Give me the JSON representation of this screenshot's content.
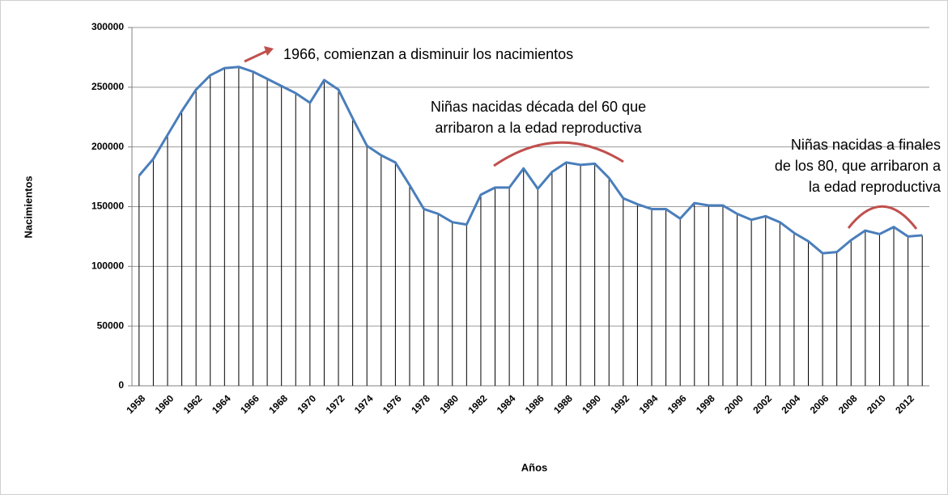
{
  "chart_data": {
    "type": "line",
    "x": [
      1958,
      1959,
      1960,
      1961,
      1962,
      1963,
      1964,
      1965,
      1966,
      1967,
      1968,
      1969,
      1970,
      1971,
      1972,
      1973,
      1974,
      1975,
      1976,
      1977,
      1978,
      1979,
      1980,
      1981,
      1982,
      1983,
      1984,
      1985,
      1986,
      1987,
      1988,
      1989,
      1990,
      1991,
      1992,
      1993,
      1994,
      1995,
      1996,
      1997,
      1998,
      1999,
      2000,
      2001,
      2002,
      2003,
      2004,
      2005,
      2006,
      2007,
      2008,
      2009,
      2010,
      2011,
      2012,
      2013
    ],
    "series": [
      {
        "name": "Nacimientos",
        "color": "#4a7ebb",
        "values": [
          176000,
          190000,
          210000,
          230000,
          248000,
          260000,
          266000,
          267000,
          263000,
          257000,
          251000,
          245000,
          237000,
          256000,
          248000,
          224000,
          201000,
          193000,
          187000,
          168000,
          148000,
          144000,
          137000,
          135000,
          160000,
          166000,
          166000,
          182000,
          165000,
          179000,
          187000,
          185000,
          186000,
          174000,
          157000,
          152000,
          148000,
          148000,
          140000,
          153000,
          151000,
          151000,
          144000,
          139000,
          142000,
          137000,
          128000,
          121000,
          111000,
          112000,
          122000,
          130000,
          127000,
          133000,
          125000,
          126000
        ]
      }
    ],
    "xlim": [
      1957.5,
      2013.5
    ],
    "xticks": [
      1958,
      1960,
      1962,
      1964,
      1966,
      1968,
      1970,
      1972,
      1974,
      1976,
      1978,
      1980,
      1982,
      1984,
      1986,
      1988,
      1990,
      1992,
      1994,
      1996,
      1998,
      2000,
      2002,
      2004,
      2006,
      2008,
      2010,
      2012
    ],
    "ylim": [
      0,
      300000
    ],
    "yticks": [
      0,
      50000,
      100000,
      150000,
      200000,
      250000,
      300000
    ],
    "grid": true,
    "drop_lines": true,
    "x_label": "Años",
    "y_label": "Nacimientos",
    "annotations": [
      {
        "lines": [
          "1966, comienzan a disminuir los nacimientos"
        ]
      },
      {
        "lines": [
          "Niñas nacidas década del 60 que",
          "arribaron a la edad reproductiva"
        ]
      },
      {
        "lines": [
          "Niñas nacidas a finales",
          "de los 80, que arribaron a",
          "la edad reproductiva"
        ]
      }
    ]
  }
}
